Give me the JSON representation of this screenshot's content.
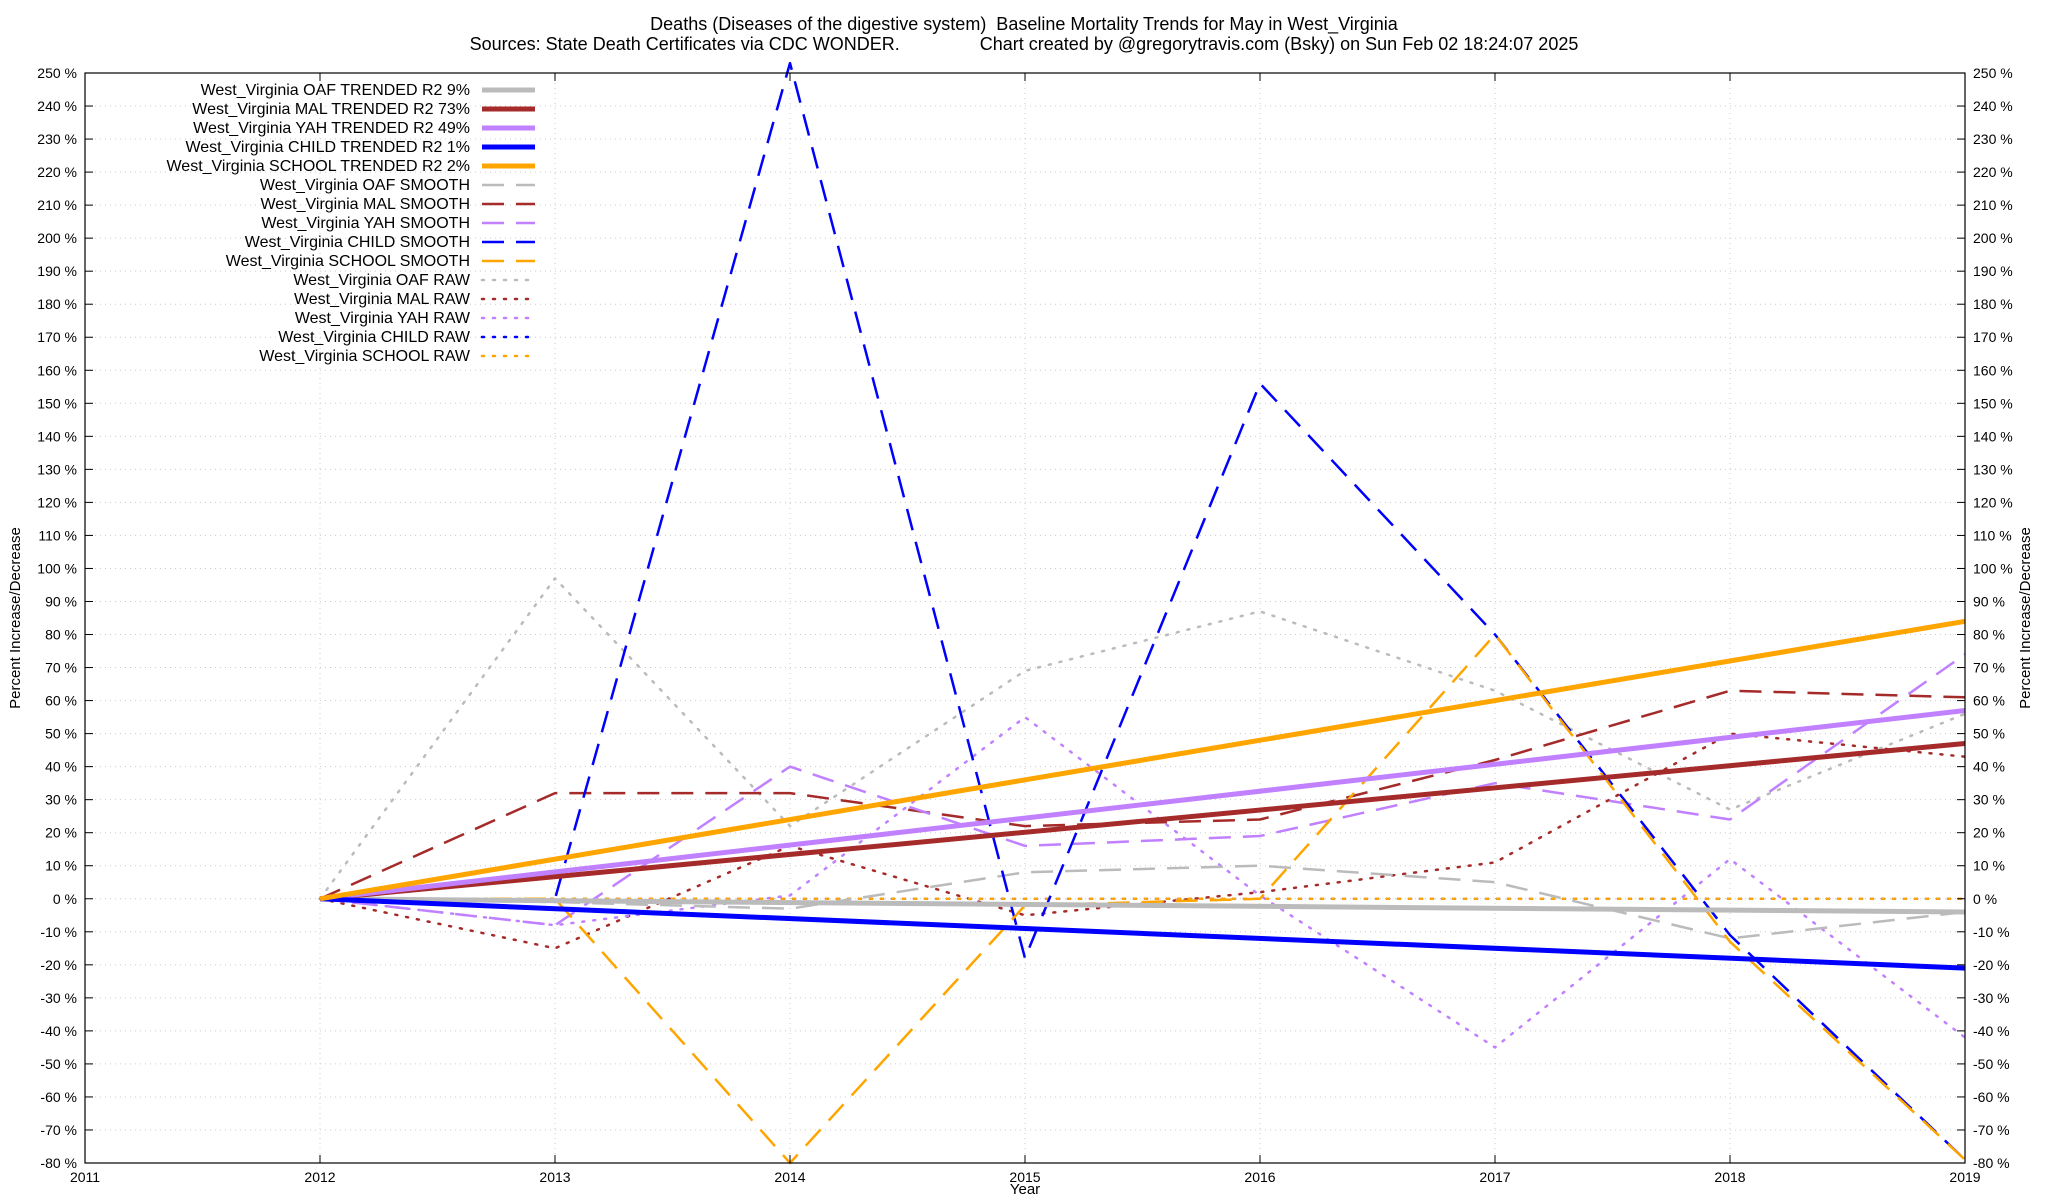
{
  "title": "Deaths (Diseases of the digestive system)  Baseline Mortality Trends for May in West_Virginia",
  "subtitle": "Sources: State Death Certificates via CDC WONDER.                Chart created by @gregorytravis.com (Bsky) on Sun Feb 02 18:24:07 2025",
  "chart_data": {
    "type": "line",
    "xlabel": "Year",
    "ylabel": "Percent Increase/Decrease",
    "y2label": "Percent Increase/Decrease",
    "xlim": [
      2011,
      2019
    ],
    "ylim": [
      -80,
      250
    ],
    "x_ticks": [
      "2011",
      "2012",
      "2013",
      "2014",
      "2015",
      "2016",
      "2017",
      "2018",
      "2019"
    ],
    "y_ticks": [
      250,
      240,
      230,
      220,
      210,
      200,
      190,
      180,
      170,
      160,
      150,
      140,
      130,
      120,
      110,
      100,
      90,
      80,
      70,
      60,
      50,
      40,
      30,
      20,
      10,
      0,
      -10,
      -20,
      -30,
      -40,
      -50,
      -60,
      -70,
      -80
    ],
    "y_tick_suffix": " %",
    "grid": true,
    "legend_position": "top-left",
    "x": [
      2012,
      2013,
      2014,
      2015,
      2016,
      2017,
      2018,
      2019
    ],
    "series": [
      {
        "name": "West_Virginia OAF TRENDED R2  9%",
        "color": "#bbbbbb",
        "style": "solid",
        "width": 5,
        "x": [
          2012,
          2019
        ],
        "values": [
          0,
          -4
        ]
      },
      {
        "name": "West_Virginia MAL TRENDED R2  73%",
        "color": "#a52a2a",
        "style": "solid",
        "width": 5,
        "x": [
          2012,
          2019
        ],
        "values": [
          0,
          47
        ]
      },
      {
        "name": "West_Virginia YAH TRENDED R2  49%",
        "color": "#c080ff",
        "style": "solid",
        "width": 5,
        "x": [
          2012,
          2019
        ],
        "values": [
          0,
          57
        ]
      },
      {
        "name": "West_Virginia CHILD TRENDED R2  1%",
        "color": "#0000ff",
        "style": "solid",
        "width": 5,
        "x": [
          2012,
          2019
        ],
        "values": [
          0,
          -21
        ]
      },
      {
        "name": "West_Virginia SCHOOL TRENDED R2  2%",
        "color": "#ffa500",
        "style": "solid",
        "width": 5,
        "x": [
          2012,
          2019
        ],
        "values": [
          0,
          84
        ]
      },
      {
        "name": "West_Virginia OAF SMOOTH",
        "color": "#bbbbbb",
        "style": "dashed",
        "width": 2.5,
        "values": [
          0,
          -1,
          -3,
          8,
          10,
          5,
          -12,
          -4
        ]
      },
      {
        "name": "West_Virginia MAL SMOOTH",
        "color": "#a52a2a",
        "style": "dashed",
        "width": 2.5,
        "values": [
          0,
          32,
          32,
          22,
          24,
          42,
          63,
          61
        ]
      },
      {
        "name": "West_Virginia YAH SMOOTH",
        "color": "#c080ff",
        "style": "dashed",
        "width": 2.5,
        "values": [
          0,
          -8,
          40,
          16,
          19,
          35,
          24,
          74
        ]
      },
      {
        "name": "West_Virginia CHILD SMOOTH",
        "color": "#0000ff",
        "style": "dashed",
        "width": 2.5,
        "values": [
          0,
          0,
          253,
          -18,
          156,
          80,
          -11,
          -79
        ]
      },
      {
        "name": "West_Virginia SCHOOL SMOOTH",
        "color": "#ffa500",
        "style": "dashed",
        "width": 2.5,
        "values": [
          0,
          0,
          -80,
          -2,
          0,
          80,
          -13,
          -79
        ]
      },
      {
        "name": "West_Virginia OAF RAW",
        "color": "#bbbbbb",
        "style": "dotted",
        "width": 2.5,
        "values": [
          0,
          97,
          22,
          69,
          87,
          63,
          27,
          56
        ]
      },
      {
        "name": "West_Virginia MAL RAW",
        "color": "#a52a2a",
        "style": "dotted",
        "width": 2.5,
        "values": [
          0,
          -15,
          16,
          -5,
          2,
          11,
          50,
          43
        ]
      },
      {
        "name": "West_Virginia YAH RAW",
        "color": "#c080ff",
        "style": "dotted",
        "width": 2.5,
        "values": [
          0,
          -8,
          1,
          55,
          1,
          -45,
          12,
          -42
        ]
      },
      {
        "name": "West_Virginia CHILD RAW",
        "color": "#0000ff",
        "style": "dotted",
        "width": 2.5,
        "values": [
          0,
          0,
          0,
          0,
          0,
          0,
          0,
          0
        ]
      },
      {
        "name": "West_Virginia SCHOOL RAW",
        "color": "#ffa500",
        "style": "dotted",
        "width": 2.5,
        "values": [
          0,
          0,
          0,
          0,
          0,
          0,
          0,
          0
        ]
      }
    ]
  }
}
